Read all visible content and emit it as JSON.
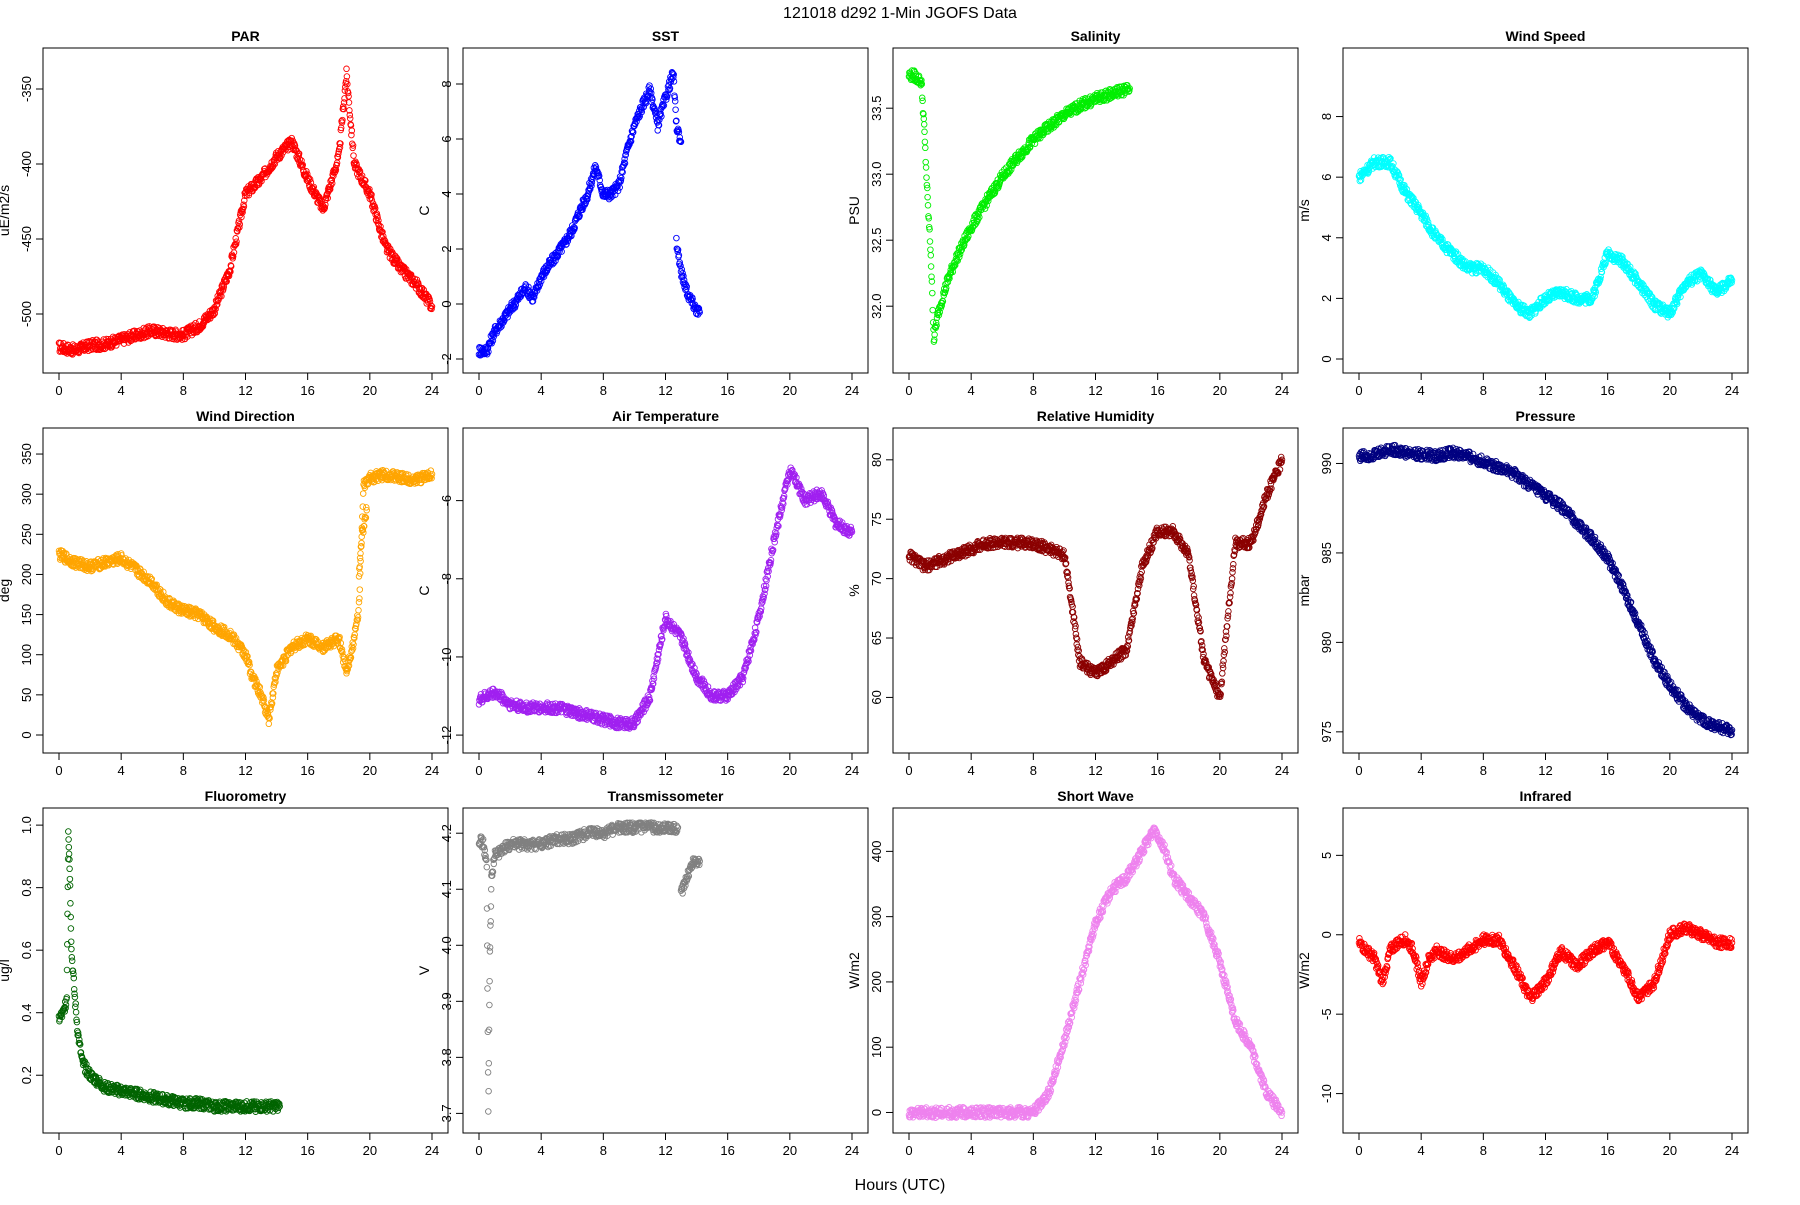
{
  "figure": {
    "title": "121018   d292   1-Min  JGOFS Data",
    "xlabel": "Hours (UTC)"
  },
  "chart_data": [
    {
      "type": "scatter",
      "title": "PAR",
      "ylabel": "uE/m2/s",
      "color": "#ff0000",
      "xlim": [
        0,
        24
      ],
      "xticks": [
        0,
        4,
        8,
        12,
        16,
        20,
        24
      ],
      "ylim": [
        -530,
        -332
      ],
      "yticks": [
        -500,
        -450,
        -400,
        -350
      ],
      "x": [
        0,
        1,
        2,
        3,
        4,
        5,
        6,
        7,
        8,
        9,
        10,
        11,
        12,
        13,
        14,
        15,
        16,
        17,
        18,
        18.5,
        19,
        20,
        21,
        22,
        23,
        24
      ],
      "y": [
        -522,
        -524,
        -521,
        -520,
        -517,
        -514,
        -511,
        -513,
        -514,
        -508,
        -497,
        -470,
        -420,
        -410,
        -395,
        -385,
        -410,
        -430,
        -395,
        -340,
        -400,
        -420,
        -455,
        -470,
        -480,
        -495
      ]
    },
    {
      "type": "scatter",
      "title": "SST",
      "ylabel": "C",
      "color": "#0000ff",
      "xlim": [
        0,
        24
      ],
      "xticks": [
        0,
        4,
        8,
        12,
        16,
        20,
        24
      ],
      "ylim": [
        -2,
        8.8
      ],
      "yticks": [
        -2,
        0,
        2,
        4,
        6,
        8
      ],
      "x": [
        0,
        0.5,
        1,
        1.5,
        2,
        2.5,
        3,
        3.5,
        4,
        4.5,
        5,
        5.5,
        6,
        6.5,
        7,
        7.5,
        8,
        8.5,
        9,
        9.5,
        10,
        10.5,
        11,
        11.5,
        12,
        12.5,
        12.7,
        13
      ],
      "y": [
        -1.7,
        -1.7,
        -1,
        -0.6,
        -0.2,
        0.2,
        0.6,
        0.2,
        1,
        1.4,
        1.8,
        2.2,
        2.7,
        3.4,
        4,
        5,
        4,
        4,
        4.3,
        5.5,
        6.5,
        7.2,
        7.8,
        6.5,
        7.5,
        8.4,
        6.5,
        5.9
      ],
      "x2": [
        12.7,
        13,
        13.2,
        13.5,
        13.8,
        14,
        14.2
      ],
      "y2": [
        2.3,
        1.2,
        0.8,
        0.3,
        0,
        -0.2,
        -0.3
      ]
    },
    {
      "type": "scatter",
      "title": "Salinity",
      "ylabel": "PSU",
      "color": "#00ee00",
      "xlim": [
        0,
        24
      ],
      "xticks": [
        0,
        4,
        8,
        12,
        16,
        20,
        24
      ],
      "ylim": [
        31.6,
        33.85
      ],
      "yticks": [
        32.0,
        32.5,
        33.0,
        33.5
      ],
      "x": [
        0,
        0.3,
        0.6,
        0.8,
        1.0,
        1.2,
        1.4,
        1.6,
        1.8,
        2,
        2.5,
        3,
        4,
        5,
        6,
        7,
        8,
        9,
        10,
        11,
        12,
        13,
        14.2
      ],
      "y": [
        33.75,
        33.75,
        33.72,
        33.7,
        33.3,
        32.8,
        32.4,
        31.75,
        31.9,
        32.0,
        32.2,
        32.35,
        32.6,
        32.8,
        32.98,
        33.13,
        33.26,
        33.36,
        33.45,
        33.52,
        33.57,
        33.61,
        33.65
      ]
    },
    {
      "type": "scatter",
      "title": "Wind Speed",
      "ylabel": "m/s",
      "color": "#00ffff",
      "xlim": [
        0,
        24
      ],
      "xticks": [
        0,
        4,
        8,
        12,
        16,
        20,
        24
      ],
      "ylim": [
        0,
        9.8
      ],
      "yticks": [
        0,
        2,
        4,
        6,
        8
      ],
      "x": [
        0,
        1,
        2,
        3,
        4,
        5,
        6,
        7,
        8,
        9,
        10,
        11,
        12,
        13,
        14,
        15,
        16,
        17,
        18,
        19,
        20,
        21,
        22,
        23,
        24
      ],
      "y": [
        6,
        6.5,
        6.5,
        5.5,
        4.8,
        4,
        3.5,
        3,
        3,
        2.5,
        1.8,
        1.5,
        2,
        2.2,
        2,
        2,
        3.5,
        3.2,
        2.5,
        1.8,
        1.5,
        2.5,
        2.8,
        2.2,
        2.6
      ]
    },
    {
      "type": "scatter",
      "title": "Wind Direction",
      "ylabel": "deg",
      "color": "#ffa500",
      "xlim": [
        0,
        24
      ],
      "xticks": [
        0,
        4,
        8,
        12,
        16,
        20,
        24
      ],
      "ylim": [
        -5,
        365
      ],
      "yticks": [
        0,
        50,
        100,
        150,
        200,
        250,
        300,
        350
      ],
      "x": [
        0,
        1,
        2,
        3,
        4,
        5,
        6,
        7,
        8,
        9,
        10,
        11,
        12,
        12.5,
        13,
        13.5,
        14,
        15,
        16,
        17,
        18,
        18.5,
        19,
        19.3,
        19.6,
        20,
        21,
        22,
        23,
        24
      ],
      "y": [
        225,
        215,
        210,
        215,
        220,
        205,
        190,
        165,
        155,
        150,
        135,
        125,
        100,
        70,
        50,
        20,
        80,
        110,
        120,
        110,
        120,
        80,
        120,
        160,
        310,
        320,
        325,
        320,
        318,
        325
      ],
      "x2": [
        19.3,
        19.5,
        19.8
      ],
      "y2": [
        200,
        250,
        280
      ]
    },
    {
      "type": "scatter",
      "title": "Air Temperature",
      "ylabel": "C",
      "color": "#a020f0",
      "xlim": [
        0,
        24
      ],
      "xticks": [
        0,
        4,
        8,
        12,
        16,
        20,
        24
      ],
      "ylim": [
        -12.1,
        -4.5
      ],
      "yticks": [
        -12,
        -10,
        -8,
        -6
      ],
      "x": [
        0,
        1,
        2,
        3,
        4,
        5,
        6,
        7,
        8,
        9,
        10,
        11,
        12,
        13,
        14,
        15,
        16,
        17,
        18,
        19,
        20,
        21,
        22,
        23,
        24
      ],
      "y": [
        -11.1,
        -10.9,
        -11.2,
        -11.3,
        -11.3,
        -11.3,
        -11.4,
        -11.5,
        -11.6,
        -11.7,
        -11.7,
        -11.0,
        -9.0,
        -9.5,
        -10.5,
        -11.0,
        -11.0,
        -10.5,
        -9.0,
        -7.0,
        -5.2,
        -6.0,
        -5.8,
        -6.6,
        -6.8
      ]
    },
    {
      "type": "scatter",
      "title": "Relative Humidity",
      "ylabel": "%",
      "color": "#8b0000",
      "xlim": [
        0,
        24
      ],
      "xticks": [
        0,
        4,
        8,
        12,
        16,
        20,
        24
      ],
      "ylim": [
        56.5,
        81.5
      ],
      "yticks": [
        60,
        65,
        70,
        75,
        80
      ],
      "x": [
        0,
        1,
        2,
        3,
        4,
        5,
        6,
        7,
        8,
        9,
        10,
        11,
        12,
        13,
        14,
        15,
        16,
        17,
        18,
        19,
        20,
        21,
        22,
        23,
        24
      ],
      "y": [
        72,
        71,
        71.5,
        72,
        72.5,
        73,
        73,
        73,
        73,
        72.5,
        72,
        63,
        62,
        63,
        64,
        71,
        74,
        74,
        72,
        63,
        60,
        73,
        73,
        77,
        80
      ]
    },
    {
      "type": "scatter",
      "title": "Pressure",
      "ylabel": "mbar",
      "color": "#000080",
      "xlim": [
        0,
        24
      ],
      "xticks": [
        0,
        4,
        8,
        12,
        16,
        20,
        24
      ],
      "ylim": [
        974.6,
        991.2
      ],
      "yticks": [
        975,
        980,
        985,
        990
      ],
      "x": [
        0,
        1,
        2,
        3,
        4,
        5,
        6,
        7,
        8,
        9,
        10,
        11,
        12,
        13,
        14,
        15,
        16,
        17,
        18,
        19,
        20,
        21,
        22,
        23,
        24
      ],
      "y": [
        990.4,
        990.5,
        990.8,
        990.6,
        990.5,
        990.4,
        990.6,
        990.4,
        990.1,
        989.8,
        989.4,
        988.8,
        988.2,
        987.6,
        986.7,
        985.8,
        984.7,
        983.0,
        981.0,
        979.0,
        977.6,
        976.5,
        975.7,
        975.3,
        975.1
      ]
    },
    {
      "type": "scatter",
      "title": "Fluorometry",
      "ylabel": "ug/l",
      "color": "#006400",
      "xlim": [
        0,
        24
      ],
      "xticks": [
        0,
        4,
        8,
        12,
        16,
        20,
        24
      ],
      "ylim": [
        0.06,
        1.01
      ],
      "yticks": [
        0.2,
        0.4,
        0.6,
        0.8,
        1.0
      ],
      "x": [
        0,
        0.3,
        0.5,
        0.6,
        0.7,
        0.8,
        1.0,
        1.2,
        1.5,
        2,
        3,
        4,
        5,
        6,
        7,
        8,
        9,
        10,
        11,
        12,
        13,
        14.2
      ],
      "y": [
        0.38,
        0.4,
        0.45,
        0.99,
        0.84,
        0.6,
        0.46,
        0.34,
        0.24,
        0.2,
        0.16,
        0.15,
        0.14,
        0.13,
        0.12,
        0.11,
        0.11,
        0.1,
        0.1,
        0.1,
        0.1,
        0.1
      ]
    },
    {
      "type": "scatter",
      "title": "Transmissometer",
      "ylabel": "V",
      "color": "#808080",
      "xlim": [
        0,
        24
      ],
      "xticks": [
        0,
        4,
        8,
        12,
        16,
        20,
        24
      ],
      "ylim": [
        3.69,
        4.22
      ],
      "yticks": [
        3.7,
        3.8,
        3.9,
        4.0,
        4.1,
        4.2
      ],
      "x": [
        0,
        0.3,
        0.5,
        0.6,
        0.7,
        0.8,
        1.0,
        1.5,
        2,
        3,
        4,
        5,
        6,
        7,
        8,
        9,
        10,
        11,
        12,
        12.8
      ],
      "y": [
        4.19,
        4.18,
        4.14,
        3.7,
        3.98,
        4.12,
        4.16,
        4.17,
        4.18,
        4.18,
        4.18,
        4.19,
        4.19,
        4.2,
        4.2,
        4.21,
        4.21,
        4.21,
        4.21,
        4.21
      ],
      "x2": [
        13,
        13.2,
        13.5,
        13.8,
        14.2
      ],
      "y2": [
        4.09,
        4.11,
        4.13,
        4.15,
        4.15
      ]
    },
    {
      "type": "scatter",
      "title": "Short Wave",
      "ylabel": "W/m2",
      "color": "#ee82ee",
      "xlim": [
        0,
        24
      ],
      "xticks": [
        0,
        4,
        8,
        12,
        16,
        20,
        24
      ],
      "ylim": [
        -10,
        445
      ],
      "yticks": [
        0,
        100,
        200,
        300,
        400
      ],
      "x": [
        0,
        2,
        4,
        6,
        8,
        9,
        10,
        11,
        12,
        13,
        14,
        15,
        15.8,
        16.5,
        17,
        18,
        19,
        20,
        21,
        22,
        23,
        24
      ],
      "y": [
        0,
        0,
        0,
        0,
        0,
        30,
        110,
        200,
        290,
        340,
        360,
        400,
        435,
        400,
        360,
        330,
        300,
        230,
        140,
        100,
        30,
        0
      ]
    },
    {
      "type": "scatter",
      "title": "Infrared",
      "ylabel": "W/m2",
      "color": "#ff0000",
      "xlim": [
        0,
        24
      ],
      "xticks": [
        0,
        4,
        8,
        12,
        16,
        20,
        24
      ],
      "ylim": [
        -11.6,
        7.1
      ],
      "yticks": [
        -10,
        -5,
        0,
        5
      ],
      "x": [
        0,
        1,
        1.5,
        2,
        2.5,
        3,
        3.5,
        4,
        4.5,
        5,
        6,
        7,
        8,
        9,
        10,
        11,
        12,
        13,
        14,
        15,
        16,
        17,
        18,
        19,
        20,
        21,
        22,
        23,
        24
      ],
      "y": [
        -0.5,
        -1.5,
        -3,
        -1,
        -0.5,
        -0.3,
        -1,
        -3,
        -1.5,
        -1,
        -1.5,
        -1,
        -0.3,
        -0.3,
        -2,
        -4,
        -3,
        -1,
        -2,
        -1,
        -0.5,
        -2,
        -4,
        -3,
        0,
        0.5,
        0,
        -0.5,
        -0.5
      ]
    }
  ]
}
